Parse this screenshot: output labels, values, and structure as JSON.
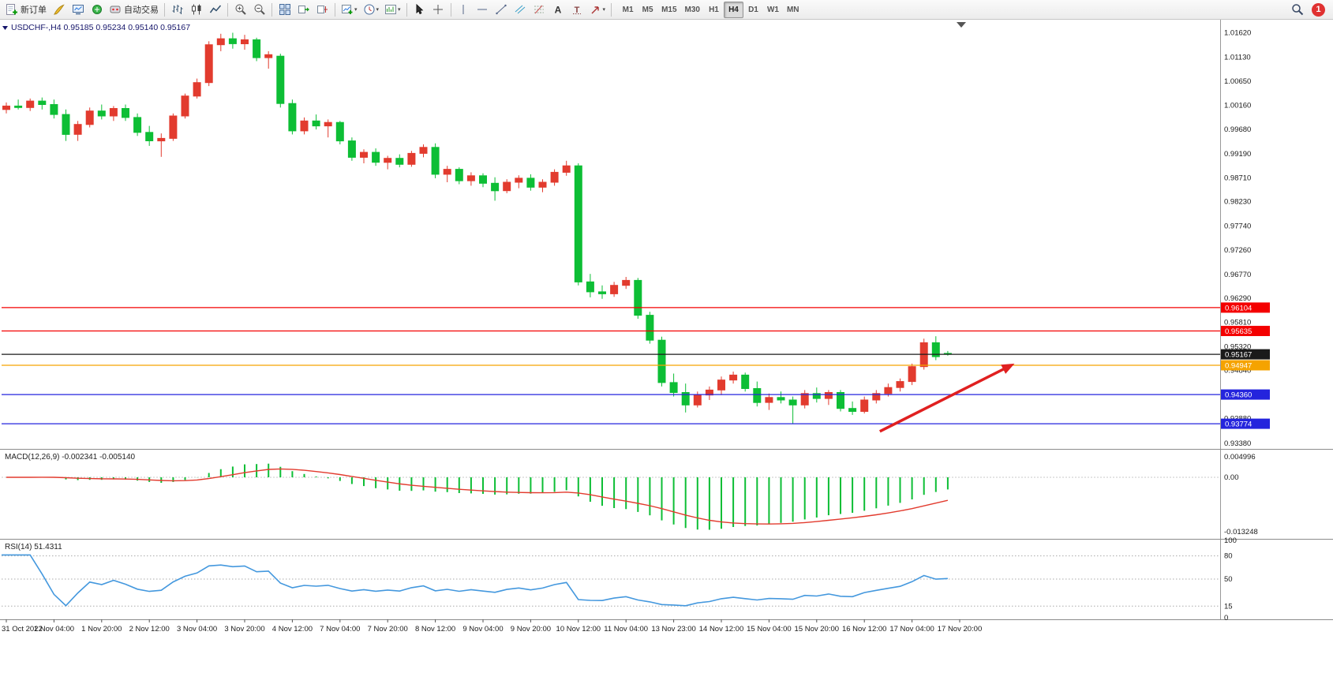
{
  "app": {
    "toolbar": {
      "new_order": "新订单",
      "auto_trading": "自动交易",
      "timeframes": [
        "M1",
        "M5",
        "M15",
        "M30",
        "H1",
        "H4",
        "D1",
        "W1",
        "MN"
      ],
      "active_timeframe": "H4",
      "notification_count": "1"
    }
  },
  "chart_data": {
    "type": "candlestick",
    "symbol": "USDCHF-",
    "timeframe": "H4",
    "info_bar": {
      "symbol_period": "USDCHF-,H4",
      "open": "0.95185",
      "high": "0.95234",
      "low": "0.95140",
      "close": "0.95167"
    },
    "colors": {
      "up": "#e23b2e",
      "down": "#0dbe35",
      "macd_hist": "#0dbe35",
      "macd_signal": "#e23b2e",
      "rsi_line": "#4498de",
      "arrow": "#e02020"
    },
    "price_axis": {
      "labels": [
        "1.01620",
        "1.01130",
        "1.00650",
        "1.00160",
        "0.99680",
        "0.99190",
        "0.98710",
        "0.98230",
        "0.97740",
        "0.97260",
        "0.96770",
        "0.96290",
        "0.95810",
        "0.95320",
        "0.94840",
        "0.94360",
        "0.93880",
        "0.93380"
      ],
      "range_max": 1.0185,
      "range_min": 0.933
    },
    "time_axis": [
      "31 Oct 2022",
      "1 Nov 04:00",
      "1 Nov 20:00",
      "2 Nov 12:00",
      "3 Nov 04:00",
      "3 Nov 20:00",
      "4 Nov 12:00",
      "7 Nov 04:00",
      "7 Nov 20:00",
      "8 Nov 12:00",
      "9 Nov 04:00",
      "9 Nov 20:00",
      "10 Nov 12:00",
      "11 Nov 04:00",
      "13 Nov 23:00",
      "14 Nov 12:00",
      "15 Nov 04:00",
      "15 Nov 20:00",
      "16 Nov 12:00",
      "17 Nov 04:00",
      "17 Nov 20:00"
    ],
    "candles": [
      [
        1.0008,
        1.0022,
        1.0,
        1.0015
      ],
      [
        1.0015,
        1.0028,
        1.0008,
        1.0012
      ],
      [
        1.0012,
        1.003,
        1.0005,
        1.0025
      ],
      [
        1.0025,
        1.0032,
        1.0008,
        1.0018
      ],
      [
        1.0018,
        1.0028,
        0.999,
        0.9998
      ],
      [
        0.9998,
        1.0008,
        0.9945,
        0.9958
      ],
      [
        0.9958,
        0.9985,
        0.9945,
        0.9978
      ],
      [
        0.9978,
        1.0012,
        0.9972,
        1.0005
      ],
      [
        1.0005,
        1.0018,
        0.9988,
        0.9995
      ],
      [
        0.9995,
        1.0015,
        0.9985,
        1.001
      ],
      [
        1.001,
        1.0018,
        0.9985,
        0.9992
      ],
      [
        0.9992,
        1.0,
        0.9955,
        0.9962
      ],
      [
        0.9962,
        0.9975,
        0.9935,
        0.9945
      ],
      [
        0.9945,
        0.996,
        0.9913,
        0.995
      ],
      [
        0.995,
        1.0,
        0.9945,
        0.9995
      ],
      [
        0.9995,
        1.004,
        0.999,
        1.0035
      ],
      [
        1.0035,
        1.007,
        1.003,
        1.0062
      ],
      [
        1.0062,
        1.0145,
        1.0055,
        1.0138
      ],
      [
        1.0138,
        1.016,
        1.0125,
        1.015
      ],
      [
        1.015,
        1.0162,
        1.013,
        1.014
      ],
      [
        1.014,
        1.0158,
        1.0128,
        1.0148
      ],
      [
        1.0148,
        1.0152,
        1.0105,
        1.0112
      ],
      [
        1.0112,
        1.0125,
        1.009,
        1.0118
      ],
      [
        1.0115,
        1.012,
        1.0012,
        1.002
      ],
      [
        1.002,
        1.0028,
        0.9958,
        0.9965
      ],
      [
        0.9965,
        0.9992,
        0.9958,
        0.9985
      ],
      [
        0.9985,
        0.9998,
        0.9968,
        0.9975
      ],
      [
        0.9975,
        0.9988,
        0.9952,
        0.9982
      ],
      [
        0.9982,
        0.9985,
        0.9938,
        0.9945
      ],
      [
        0.9945,
        0.9952,
        0.9905,
        0.9912
      ],
      [
        0.9912,
        0.9928,
        0.99,
        0.9922
      ],
      [
        0.9922,
        0.993,
        0.9895,
        0.9902
      ],
      [
        0.9902,
        0.9915,
        0.9888,
        0.991
      ],
      [
        0.991,
        0.9918,
        0.9892,
        0.9898
      ],
      [
        0.9898,
        0.9925,
        0.9893,
        0.992
      ],
      [
        0.992,
        0.9938,
        0.9912,
        0.9932
      ],
      [
        0.9932,
        0.994,
        0.987,
        0.9878
      ],
      [
        0.9878,
        0.9895,
        0.9862,
        0.9888
      ],
      [
        0.9888,
        0.9892,
        0.9858,
        0.9865
      ],
      [
        0.9865,
        0.9882,
        0.9855,
        0.9875
      ],
      [
        0.9875,
        0.988,
        0.9852,
        0.986
      ],
      [
        0.986,
        0.9872,
        0.9825,
        0.9845
      ],
      [
        0.9845,
        0.9868,
        0.984,
        0.9862
      ],
      [
        0.9862,
        0.9876,
        0.985,
        0.987
      ],
      [
        0.987,
        0.9878,
        0.9845,
        0.9852
      ],
      [
        0.9852,
        0.9868,
        0.9842,
        0.9862
      ],
      [
        0.9862,
        0.9888,
        0.9855,
        0.9882
      ],
      [
        0.9882,
        0.9905,
        0.9875,
        0.9895
      ],
      [
        0.9895,
        0.99,
        0.9655,
        0.9662
      ],
      [
        0.9662,
        0.9678,
        0.9631,
        0.9642
      ],
      [
        0.9642,
        0.9655,
        0.9628,
        0.9638
      ],
      [
        0.9638,
        0.9662,
        0.9632,
        0.9655
      ],
      [
        0.9655,
        0.9672,
        0.9648,
        0.9665
      ],
      [
        0.9665,
        0.967,
        0.9588,
        0.9595
      ],
      [
        0.9595,
        0.9602,
        0.9538,
        0.9545
      ],
      [
        0.9545,
        0.9552,
        0.9452,
        0.946
      ],
      [
        0.946,
        0.9478,
        0.9432,
        0.944
      ],
      [
        0.944,
        0.9458,
        0.94,
        0.9415
      ],
      [
        0.9415,
        0.9442,
        0.941,
        0.9435
      ],
      [
        0.9435,
        0.9452,
        0.9425,
        0.9445
      ],
      [
        0.9445,
        0.9472,
        0.9435,
        0.9465
      ],
      [
        0.9465,
        0.9482,
        0.9458,
        0.9475
      ],
      [
        0.9475,
        0.948,
        0.9442,
        0.9448
      ],
      [
        0.9448,
        0.9462,
        0.9412,
        0.942
      ],
      [
        0.942,
        0.9438,
        0.9405,
        0.943
      ],
      [
        0.943,
        0.9442,
        0.9418,
        0.9425
      ],
      [
        0.9425,
        0.9432,
        0.9377,
        0.9415
      ],
      [
        0.9415,
        0.9445,
        0.9408,
        0.9438
      ],
      [
        0.9438,
        0.945,
        0.942,
        0.9428
      ],
      [
        0.9428,
        0.9445,
        0.9415,
        0.944
      ],
      [
        0.944,
        0.9445,
        0.9402,
        0.9408
      ],
      [
        0.9408,
        0.9422,
        0.9395,
        0.9402
      ],
      [
        0.9402,
        0.9432,
        0.9398,
        0.9425
      ],
      [
        0.9425,
        0.9445,
        0.9418,
        0.9438
      ],
      [
        0.9438,
        0.9458,
        0.9432,
        0.945
      ],
      [
        0.945,
        0.9468,
        0.9442,
        0.9462
      ],
      [
        0.9462,
        0.9498,
        0.9455,
        0.9492
      ],
      [
        0.9492,
        0.9548,
        0.9486,
        0.954
      ],
      [
        0.954,
        0.9553,
        0.9505,
        0.9512
      ],
      [
        0.95185,
        0.95234,
        0.9514,
        0.95167
      ]
    ],
    "h_lines": [
      {
        "price": 0.96104,
        "label": "0.96104",
        "color": "#f40000"
      },
      {
        "price": 0.95635,
        "label": "0.95635",
        "color": "#f40000"
      },
      {
        "price": 0.95167,
        "label": "0.95167",
        "color": "#1a1a1a"
      },
      {
        "price": 0.94947,
        "label": "0.94947",
        "color": "#f5a300"
      },
      {
        "price": 0.9436,
        "label": "0.94360",
        "color": "#2424dd"
      },
      {
        "price": 0.93774,
        "label": "0.93774",
        "color": "#2424dd"
      }
    ],
    "trend_arrow": {
      "from_bar": 73.3,
      "from_price": 0.9362,
      "to_bar": 84.6,
      "to_price": 0.9498
    },
    "indicators": {
      "macd": {
        "label": "MACD(12,26,9)",
        "value_main": "-0.002341",
        "value_signal": "-0.005140",
        "fast": 12,
        "slow": 26,
        "signal": 9,
        "axis": [
          {
            "label": "0.004996",
            "value": 0.004996
          },
          {
            "label": "0.00",
            "value": 0
          },
          {
            "label": "-0.013248",
            "value": -0.013248
          }
        ]
      },
      "rsi": {
        "label": "RSI(14)",
        "value": "51.4311",
        "period": 14,
        "levels": [
          80,
          50,
          15
        ],
        "axis": [
          {
            "label": "100",
            "value": 100
          },
          {
            "label": "80",
            "value": 80
          },
          {
            "label": "50",
            "value": 50
          },
          {
            "label": "15",
            "value": 15
          },
          {
            "label": "0",
            "value": 0
          }
        ]
      }
    }
  }
}
